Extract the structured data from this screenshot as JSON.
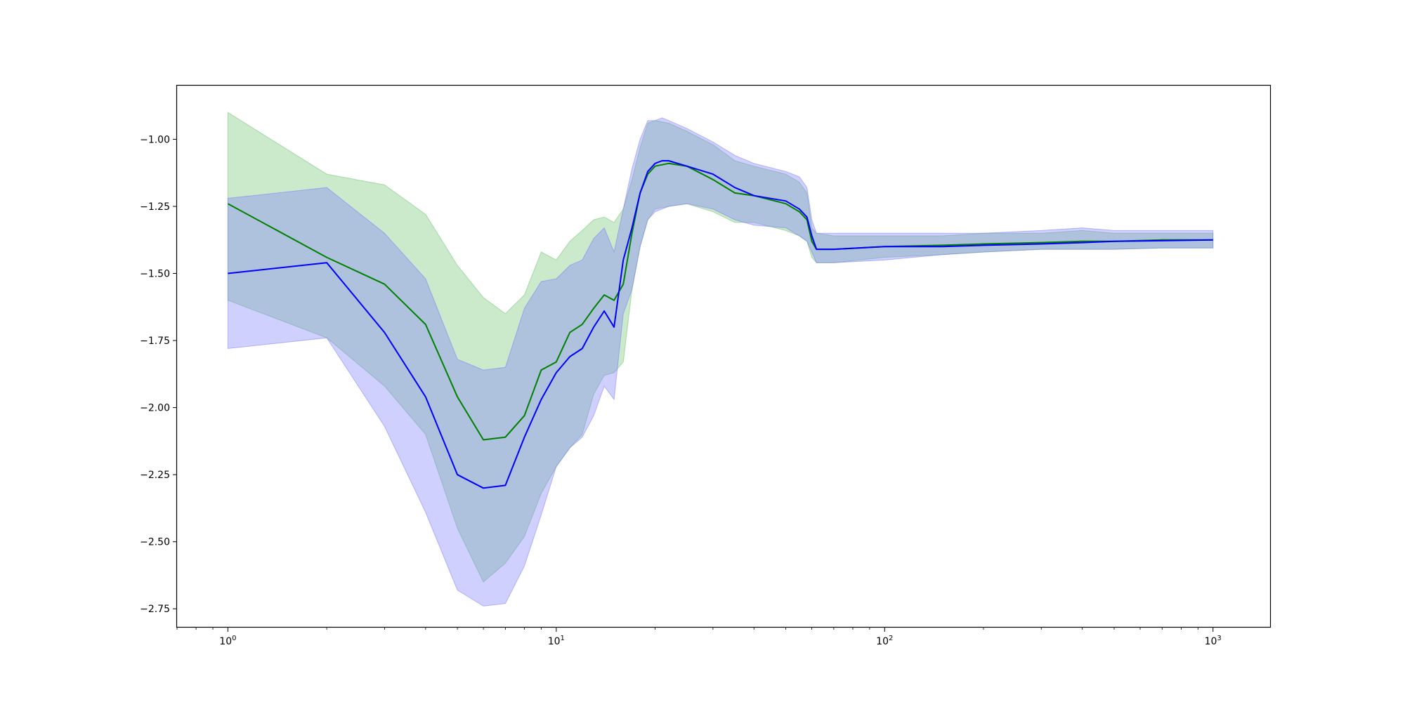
{
  "chart_data": {
    "type": "line",
    "title": "",
    "xlabel": "",
    "ylabel": "",
    "xscale": "log",
    "xlim": [
      0.7,
      1500
    ],
    "ylim": [
      -2.82,
      -0.8
    ],
    "grid": false,
    "legend": "none",
    "x_ticks": [
      {
        "value": 1,
        "base": "10",
        "exp": "0"
      },
      {
        "value": 10,
        "base": "10",
        "exp": "1"
      },
      {
        "value": 100,
        "base": "10",
        "exp": "2"
      },
      {
        "value": 1000,
        "base": "10",
        "exp": "3"
      }
    ],
    "y_ticks": [
      {
        "value": -1.0,
        "label": "−1.00"
      },
      {
        "value": -1.25,
        "label": "−1.25"
      },
      {
        "value": -1.5,
        "label": "−1.50"
      },
      {
        "value": -1.75,
        "label": "−1.75"
      },
      {
        "value": -2.0,
        "label": "−2.00"
      },
      {
        "value": -2.25,
        "label": "−2.25"
      },
      {
        "value": -2.5,
        "label": "−2.50"
      },
      {
        "value": -2.75,
        "label": "−2.75"
      }
    ],
    "series": [
      {
        "color": "#008000",
        "band_color": "#6abf6a",
        "x": [
          1,
          2,
          3,
          4,
          5,
          6,
          7,
          8,
          9,
          10,
          11,
          12,
          13,
          14,
          15,
          16,
          17,
          18,
          19,
          20,
          22,
          25,
          30,
          35,
          40,
          50,
          55,
          58,
          60,
          62,
          70,
          100,
          150,
          200,
          300,
          400,
          500,
          700,
          1000
        ],
        "y": [
          -1.24,
          -1.44,
          -1.54,
          -1.69,
          -1.96,
          -2.12,
          -2.11,
          -2.03,
          -1.86,
          -1.83,
          -1.72,
          -1.69,
          -1.63,
          -1.58,
          -1.6,
          -1.54,
          -1.35,
          -1.2,
          -1.13,
          -1.1,
          -1.09,
          -1.1,
          -1.15,
          -1.2,
          -1.21,
          -1.24,
          -1.27,
          -1.3,
          -1.38,
          -1.41,
          -1.41,
          -1.4,
          -1.395,
          -1.39,
          -1.385,
          -1.38,
          -1.38,
          -1.375,
          -1.375
        ],
        "lower": [
          -1.6,
          -1.74,
          -1.92,
          -2.1,
          -2.45,
          -2.65,
          -2.58,
          -2.48,
          -2.32,
          -2.22,
          -2.15,
          -2.1,
          -1.95,
          -1.88,
          -1.87,
          -1.83,
          -1.56,
          -1.4,
          -1.3,
          -1.26,
          -1.25,
          -1.24,
          -1.27,
          -1.31,
          -1.31,
          -1.34,
          -1.36,
          -1.38,
          -1.44,
          -1.46,
          -1.46,
          -1.44,
          -1.43,
          -1.42,
          -1.41,
          -1.41,
          -1.41,
          -1.405,
          -1.405
        ],
        "upper": [
          -0.9,
          -1.13,
          -1.17,
          -1.28,
          -1.47,
          -1.59,
          -1.65,
          -1.58,
          -1.42,
          -1.45,
          -1.38,
          -1.34,
          -1.3,
          -1.29,
          -1.31,
          -1.26,
          -1.15,
          -1.03,
          -0.94,
          -0.93,
          -0.94,
          -0.97,
          -1.02,
          -1.08,
          -1.1,
          -1.13,
          -1.16,
          -1.2,
          -1.33,
          -1.35,
          -1.36,
          -1.36,
          -1.36,
          -1.35,
          -1.35,
          -1.34,
          -1.35,
          -1.35,
          -1.35
        ]
      },
      {
        "color": "#0000ff",
        "band_color": "#7878ff",
        "x": [
          1,
          2,
          3,
          4,
          5,
          6,
          7,
          8,
          9,
          10,
          11,
          12,
          13,
          14,
          15,
          16,
          17,
          18,
          19,
          20,
          21,
          22,
          25,
          30,
          35,
          40,
          50,
          55,
          58,
          60,
          62,
          70,
          100,
          150,
          200,
          300,
          400,
          500,
          700,
          1000
        ],
        "y": [
          -1.5,
          -1.46,
          -1.72,
          -1.96,
          -2.25,
          -2.3,
          -2.29,
          -2.11,
          -1.97,
          -1.87,
          -1.81,
          -1.78,
          -1.7,
          -1.64,
          -1.7,
          -1.45,
          -1.33,
          -1.2,
          -1.12,
          -1.09,
          -1.08,
          -1.08,
          -1.1,
          -1.13,
          -1.18,
          -1.21,
          -1.23,
          -1.26,
          -1.29,
          -1.36,
          -1.41,
          -1.41,
          -1.4,
          -1.4,
          -1.395,
          -1.39,
          -1.385,
          -1.38,
          -1.378,
          -1.375
        ],
        "lower": [
          -1.78,
          -1.74,
          -2.07,
          -2.39,
          -2.68,
          -2.74,
          -2.73,
          -2.59,
          -2.4,
          -2.22,
          -2.15,
          -2.11,
          -2.03,
          -1.92,
          -1.97,
          -1.65,
          -1.56,
          -1.4,
          -1.3,
          -1.27,
          -1.26,
          -1.25,
          -1.24,
          -1.26,
          -1.3,
          -1.32,
          -1.33,
          -1.36,
          -1.38,
          -1.42,
          -1.46,
          -1.46,
          -1.45,
          -1.43,
          -1.42,
          -1.41,
          -1.41,
          -1.41,
          -1.405,
          -1.405
        ],
        "upper": [
          -1.22,
          -1.18,
          -1.35,
          -1.52,
          -1.82,
          -1.86,
          -1.85,
          -1.63,
          -1.53,
          -1.52,
          -1.47,
          -1.45,
          -1.37,
          -1.33,
          -1.42,
          -1.26,
          -1.11,
          -1.0,
          -0.93,
          -0.93,
          -0.92,
          -0.93,
          -0.96,
          -1.01,
          -1.06,
          -1.09,
          -1.12,
          -1.14,
          -1.18,
          -1.3,
          -1.35,
          -1.35,
          -1.35,
          -1.35,
          -1.35,
          -1.34,
          -1.33,
          -1.34,
          -1.34,
          -1.34
        ]
      }
    ]
  }
}
